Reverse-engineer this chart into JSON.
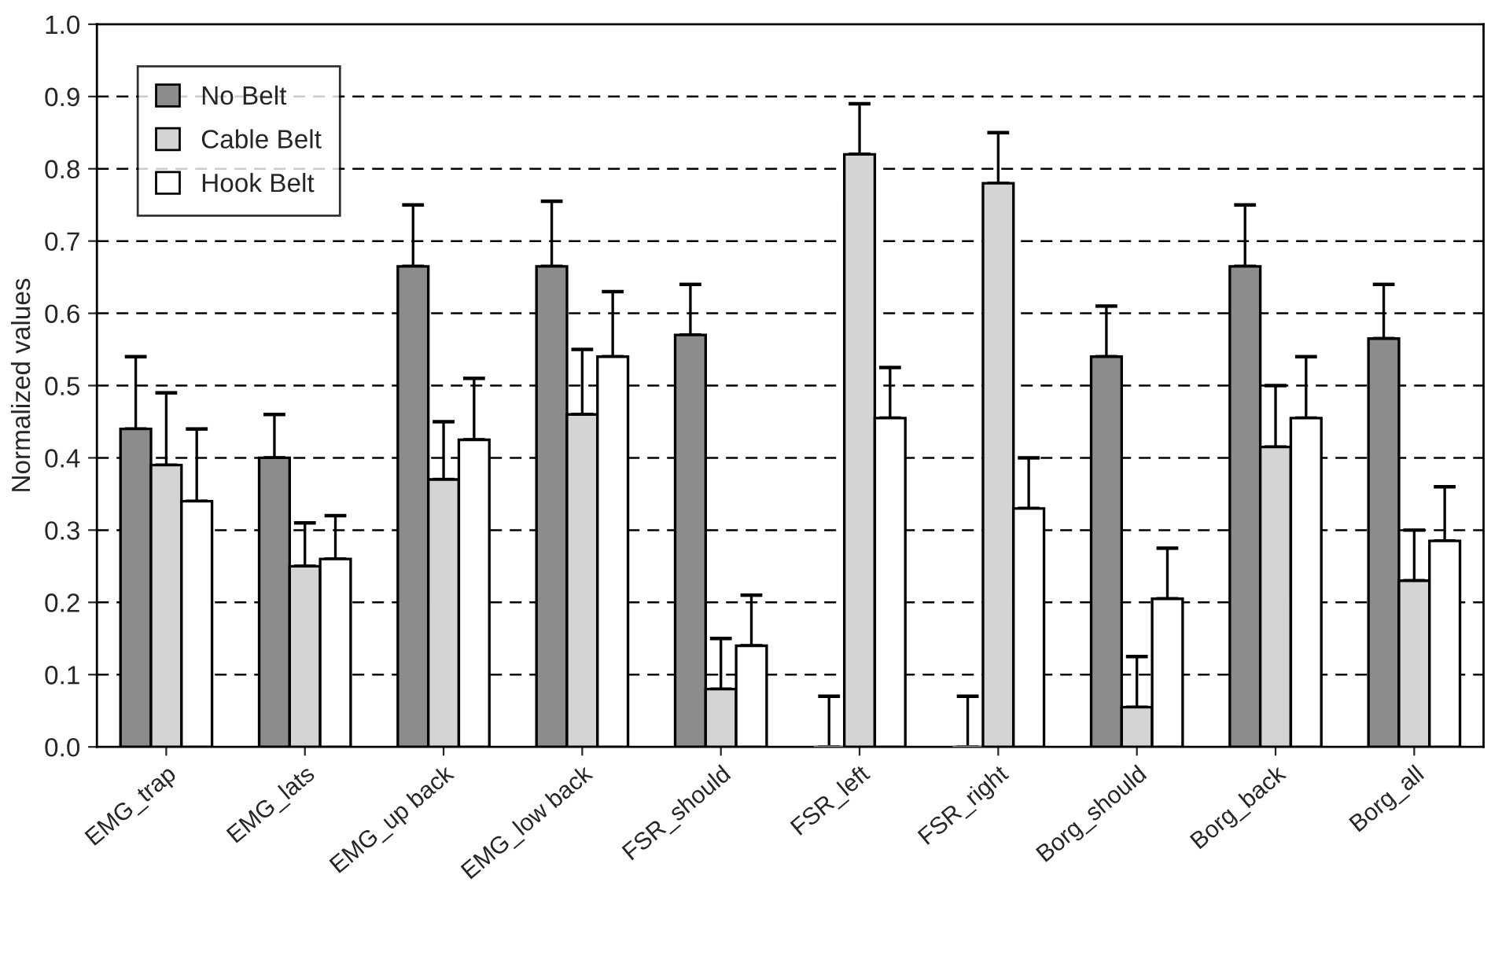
{
  "chart_data": {
    "type": "bar",
    "ylabel": "Normalized values",
    "categories": [
      "EMG_trap",
      "EMG_lats",
      "EMG_up back",
      "EMG_low back",
      "FSR_should",
      "FSR_left",
      "FSR_right",
      "Borg_should",
      "Borg_back",
      "Borg_all"
    ],
    "series": [
      {
        "name": "No Belt",
        "color": "#8c8c8c",
        "values": [
          0.44,
          0.4,
          0.665,
          0.665,
          0.57,
          0,
          0,
          0.54,
          0.665,
          0.565
        ],
        "errors": [
          [
            0.44,
            0.54
          ],
          [
            0.4,
            0.46
          ],
          [
            0.665,
            0.75
          ],
          [
            0.665,
            0.755
          ],
          [
            0.57,
            0.64
          ],
          [
            0,
            0.07
          ],
          [
            0,
            0.07
          ],
          [
            0.54,
            0.61
          ],
          [
            0.665,
            0.75
          ],
          [
            0.565,
            0.64
          ]
        ]
      },
      {
        "name": "Cable Belt",
        "color": "#d4d4d4",
        "values": [
          0.39,
          0.25,
          0.37,
          0.46,
          0.08,
          0.82,
          0.78,
          0.055,
          0.415,
          0.23
        ],
        "errors": [
          [
            0.39,
            0.49
          ],
          [
            0.25,
            0.31
          ],
          [
            0.37,
            0.45
          ],
          [
            0.46,
            0.55
          ],
          [
            0.08,
            0.15
          ],
          [
            0.82,
            0.89
          ],
          [
            0.78,
            0.85
          ],
          [
            0.055,
            0.125
          ],
          [
            0.415,
            0.5
          ],
          [
            0.23,
            0.3
          ]
        ]
      },
      {
        "name": "Hook Belt",
        "color": "#ffffff",
        "values": [
          0.34,
          0.26,
          0.425,
          0.54,
          0.14,
          0.455,
          0.33,
          0.205,
          0.455,
          0.285
        ],
        "errors": [
          [
            0.34,
            0.44
          ],
          [
            0.26,
            0.32
          ],
          [
            0.425,
            0.51
          ],
          [
            0.54,
            0.63
          ],
          [
            0.14,
            0.21
          ],
          [
            0.455,
            0.525
          ],
          [
            0.33,
            0.4
          ],
          [
            0.205,
            0.275
          ],
          [
            0.455,
            0.54
          ],
          [
            0.285,
            0.36
          ]
        ]
      }
    ],
    "ylim": [
      0,
      1.0
    ],
    "yticks": [
      {
        "value": 0,
        "label": "0.0"
      },
      {
        "value": 0.1,
        "label": "0.1"
      },
      {
        "value": 0.2,
        "label": "0.2"
      },
      {
        "value": 0.3,
        "label": "0.3"
      },
      {
        "value": 0.4,
        "label": "0.4"
      },
      {
        "value": 0.5,
        "label": "0.5"
      },
      {
        "value": 0.6,
        "label": "0.6"
      },
      {
        "value": 0.7,
        "label": "0.7"
      },
      {
        "value": 0.8,
        "label": "0.8"
      },
      {
        "value": 0.9,
        "label": "0.9"
      },
      {
        "value": 1.0,
        "label": "1.0"
      }
    ],
    "grid": "y",
    "legend": "top left"
  }
}
